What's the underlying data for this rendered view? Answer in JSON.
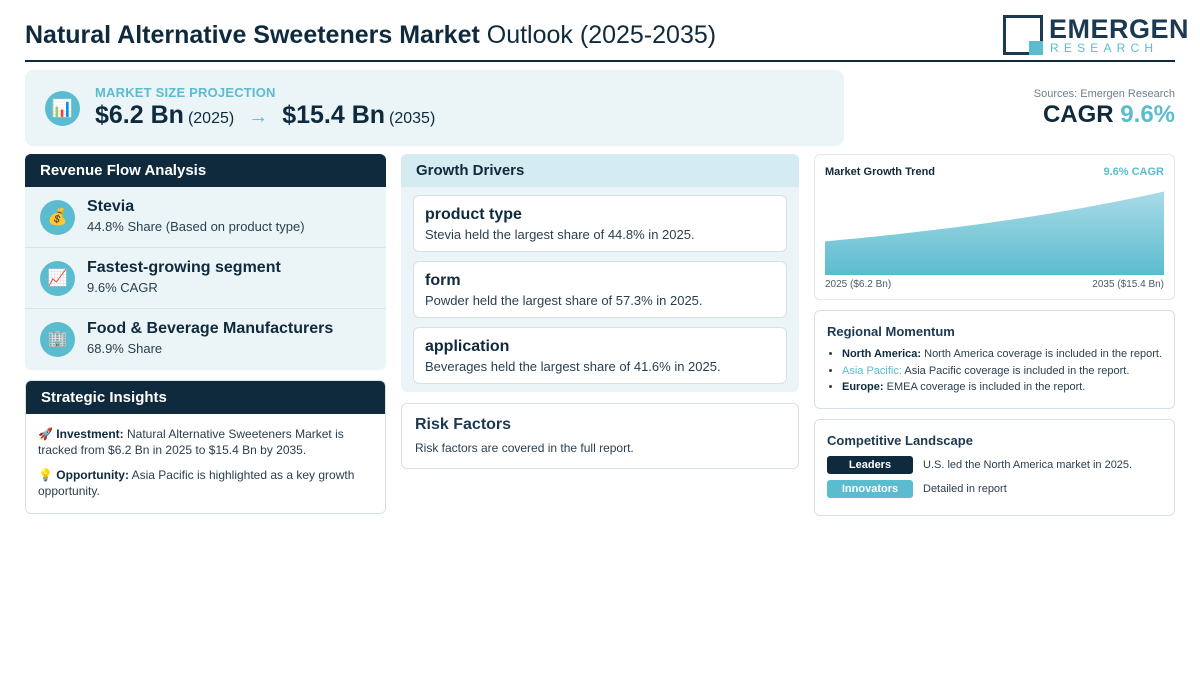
{
  "header": {
    "title_bold": "Natural Alternative Sweeteners Market",
    "title_rest": "Outlook (2025-2035)",
    "logo_main": "EMERGEN",
    "logo_sub": "RESEARCH"
  },
  "projection": {
    "label": "MARKET SIZE PROJECTION",
    "start_value": "$6.2 Bn",
    "start_year": "(2025)",
    "arrow": "→",
    "end_value": "$15.4 Bn",
    "end_year": "(2035)",
    "icon": "chart-icon"
  },
  "cagr": {
    "source": "Sources: Emergen Research",
    "label": "CAGR",
    "value": "9.6%"
  },
  "revenue_flow": {
    "title": "Revenue Flow Analysis",
    "items": [
      {
        "icon": "money-bag-icon",
        "glyph": "💰",
        "title": "Stevia",
        "subtitle": "44.8% Share (Based on product type)"
      },
      {
        "icon": "trend-up-icon",
        "glyph": "📈",
        "title": "Fastest-growing segment",
        "subtitle": "9.6% CAGR"
      },
      {
        "icon": "building-icon",
        "glyph": "🏢",
        "title": "Food & Beverage Manufacturers",
        "subtitle": "68.9% Share"
      }
    ]
  },
  "strategic_insights": {
    "title": "Strategic Insights",
    "items": [
      {
        "icon": "rocket-icon",
        "glyph": "🚀",
        "label": "Investment:",
        "text": "Natural Alternative Sweeteners Market is tracked from $6.2 Bn in 2025 to $15.4 Bn by 2035."
      },
      {
        "icon": "lightbulb-icon",
        "glyph": "💡",
        "label": "Opportunity:",
        "text": "Asia Pacific is highlighted as a key growth opportunity."
      }
    ]
  },
  "growth_drivers": {
    "title": "Growth Drivers",
    "items": [
      {
        "title": "product type",
        "text": "Stevia held the largest share of 44.8% in 2025."
      },
      {
        "title": "form",
        "text": "Powder held the largest share of 57.3% in 2025."
      },
      {
        "title": "application",
        "text": "Beverages held the largest share of 41.6% in 2025."
      }
    ]
  },
  "risk_factors": {
    "title": "Risk Factors",
    "text": "Risk factors are covered in the full report."
  },
  "chart_data": {
    "type": "area",
    "title": "Market Growth Trend",
    "annotation": "9.6% CAGR",
    "x": [
      2025,
      2035
    ],
    "values": [
      6.2,
      15.4
    ],
    "x_labels": [
      "2025 ($6.2 Bn)",
      "2035 ($15.4 Bn)"
    ],
    "xlabel": "",
    "ylabel": "",
    "grid": false,
    "colors": {
      "fill_top": "#a8dbe6",
      "fill_bottom": "#5bbccf"
    }
  },
  "regional_momentum": {
    "title": "Regional Momentum",
    "items": [
      {
        "region": "North America:",
        "text": "North America coverage is included in the report.",
        "highlight": false
      },
      {
        "region": "Asia Pacific:",
        "text": "Asia Pacific coverage is included in the report.",
        "highlight": true
      },
      {
        "region": "Europe:",
        "text": "EMEA coverage is included in the report.",
        "highlight": false
      }
    ]
  },
  "competitive_landscape": {
    "title": "Competitive Landscape",
    "rows": [
      {
        "badge": "Leaders",
        "text": "U.S. led the North America market in 2025."
      },
      {
        "badge": "Innovators",
        "text": "Detailed in report"
      }
    ]
  },
  "colors": {
    "navy": "#0f2a3d",
    "accent": "#5bbccf",
    "panel": "#ebf5f8"
  }
}
